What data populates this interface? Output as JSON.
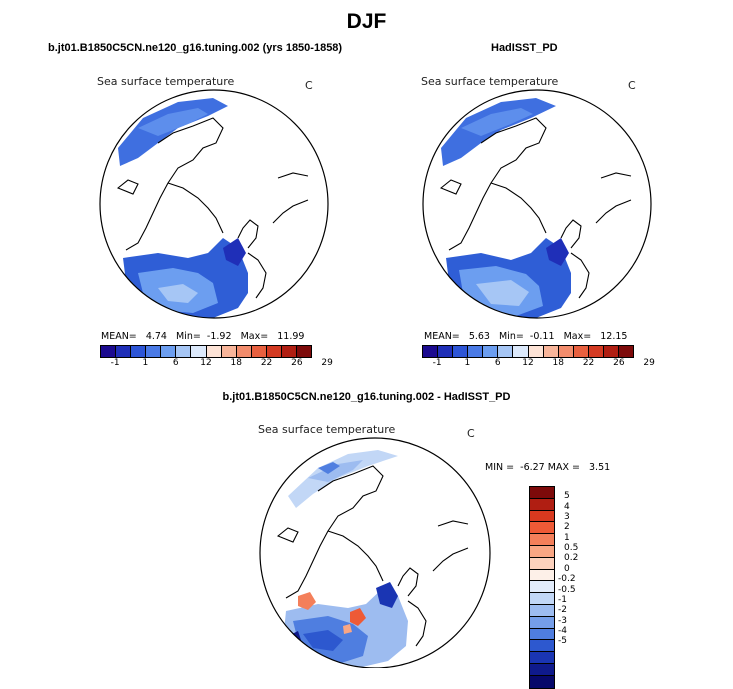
{
  "season": "DJF",
  "panels": [
    {
      "title": "b.jt01.B1850C5CN.ne120_g16.tuning.002 (yrs 1850-1858)",
      "variable": "Sea surface temperature",
      "unit": "C",
      "stats": {
        "mean_label": "MEAN=",
        "mean": "4.74",
        "min_label": "Min=",
        "min": "-1.92",
        "max_label": "Max=",
        "max": "11.99"
      }
    },
    {
      "title": "HadISST_PD",
      "variable": "Sea surface temperature",
      "unit": "C",
      "stats": {
        "mean_label": "MEAN=",
        "mean": "5.63",
        "min_label": "Min=",
        "min": "-0.11",
        "max_label": "Max=",
        "max": "12.15"
      }
    },
    {
      "title": "b.jt01.B1850C5CN.ne120_g16.tuning.002 - HadISST_PD",
      "variable": "Sea surface temperature",
      "unit": "C",
      "stats": {
        "min_label": "MIN =",
        "min": "-6.27",
        "max_label": "MAX =",
        "max": "3.51"
      }
    }
  ],
  "colorbar_abs": {
    "colors": [
      "#1b0a8f",
      "#1f2fb8",
      "#2d55d6",
      "#4a7ae6",
      "#6c9ef0",
      "#a6c6f5",
      "#dce9fb",
      "#fde3d6",
      "#f8b59a",
      "#f28c6c",
      "#e8603f",
      "#d33a22",
      "#b01e12",
      "#7d0a0a"
    ],
    "labels": [
      "-1",
      "1",
      "6",
      "12",
      "18",
      "22",
      "26",
      "29"
    ]
  },
  "colorbar_diff": {
    "colors": [
      "#7d0a0a",
      "#b01e12",
      "#d8391f",
      "#ee5a36",
      "#f47f5a",
      "#f9a684",
      "#fcd1bd",
      "#fdf0e8",
      "#e2ecfb",
      "#c2d7f6",
      "#9dbcf0",
      "#759ee9",
      "#4f7ee0",
      "#2d58cf",
      "#1a35b3",
      "#0f1a8c",
      "#07086a"
    ],
    "labels": [
      "5",
      "4",
      "3",
      "2",
      "1",
      "0.5",
      "0.2",
      "0",
      "-0.2",
      "-0.5",
      "-1",
      "-2",
      "-3",
      "-4",
      "-5"
    ]
  }
}
